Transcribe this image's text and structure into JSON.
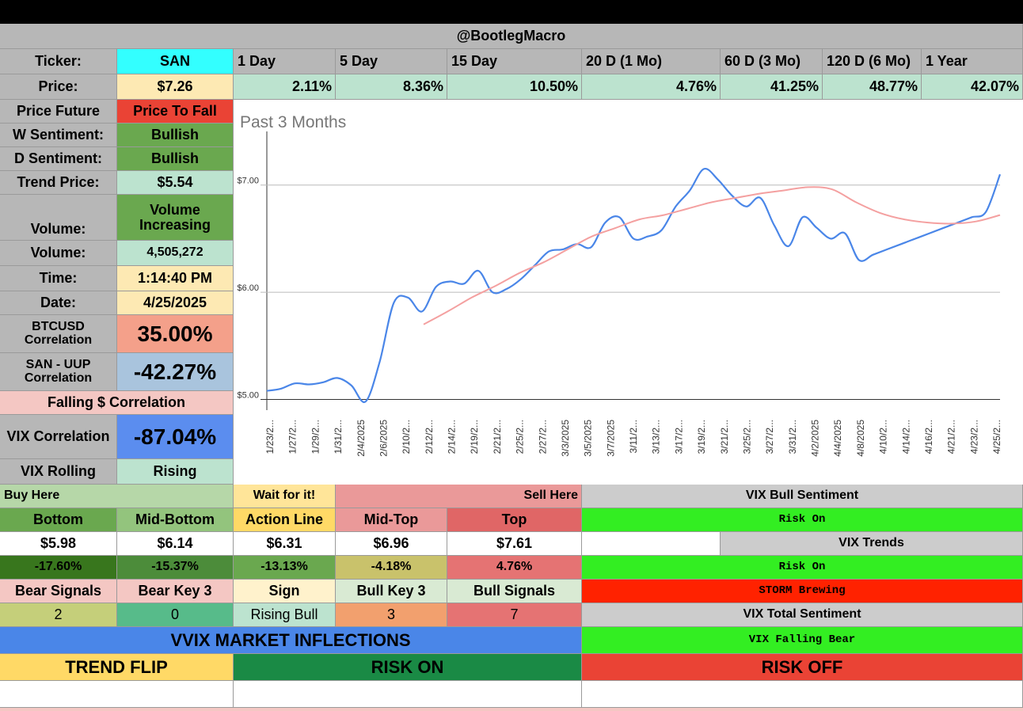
{
  "top_bar": "",
  "handle": "@BootlegMacro",
  "ticker": {
    "label": "Ticker:",
    "value": "SAN"
  },
  "periods": [
    "1 Day",
    "5 Day",
    "15 Day",
    "20 D (1 Mo)",
    "60 D (3 Mo)",
    "120 D (6 Mo)",
    "1 Year"
  ],
  "price": {
    "label": "Price:",
    "value": "$7.26"
  },
  "changes": [
    "2.11%",
    "8.36%",
    "10.50%",
    "4.76%",
    "41.25%",
    "48.77%",
    "42.07%"
  ],
  "left_panel": {
    "price_future": {
      "label": "Price Future",
      "value": "Price To Fall"
    },
    "w_sentiment": {
      "label": "W Sentiment:",
      "value": "Bullish"
    },
    "d_sentiment": {
      "label": "D Sentiment:",
      "value": "Bullish"
    },
    "trend_price": {
      "label": "Trend Price:",
      "value": "$5.54"
    },
    "volume_trend": {
      "label": "Volume:",
      "value": "Volume Increasing"
    },
    "volume": {
      "label": "Volume:",
      "value": "4,505,272"
    },
    "time": {
      "label": "Time:",
      "value": "1:14:40 PM"
    },
    "date": {
      "label": "Date:",
      "value": "4/25/2025"
    },
    "btc_corr": {
      "label": "BTCUSD Correlation",
      "value": "35.00%"
    },
    "uup_corr": {
      "label": "SAN - UUP Correlation",
      "value": "-42.27%"
    },
    "falling_corr": "Falling $ Correlation",
    "vix_corr": {
      "label": "VIX Correlation",
      "value": "-87.04%"
    },
    "vix_rolling": {
      "label": "VIX Rolling",
      "value": "Rising"
    }
  },
  "levels": {
    "buy_here": "Buy Here",
    "wait": "Wait for it!",
    "sell_here": "Sell Here",
    "headers": [
      "Bottom",
      "Mid-Bottom",
      "Action Line",
      "Mid-Top",
      "Top"
    ],
    "prices": [
      "$5.98",
      "$6.14",
      "$6.31",
      "$6.96",
      "$7.61"
    ],
    "pcts": [
      "-17.60%",
      "-15.37%",
      "-13.13%",
      "-4.18%",
      "4.76%"
    ],
    "signal_headers": [
      "Bear Signals",
      "Bear Key 3",
      "Sign",
      "Bull Key 3",
      "Bull Signals"
    ],
    "signal_values": [
      "2",
      "0",
      "Rising Bull",
      "3",
      "7"
    ]
  },
  "vix": {
    "bull_sentiment_label": "VIX Bull Sentiment",
    "bull_sentiment_value": "Risk On",
    "trends_label": "VIX Trends",
    "trend_value_1": "Risk On",
    "trend_value_2": "STORM Brewing",
    "total_label": "VIX Total Sentiment",
    "total_value": "VIX Falling Bear"
  },
  "vvix": {
    "title": "VVIX MARKET INFLECTIONS",
    "trend_flip": "TREND FLIP",
    "risk_on": "RISK ON",
    "risk_off": "RISK OFF"
  },
  "colors": {
    "cyan": "#33ffff",
    "cream": "#fde9b3",
    "mint": "#bce3cf",
    "green": "#6aa84f",
    "red": "#ea4335",
    "salmon": "#f4a08a",
    "lightblue": "#a9c4dd",
    "blue": "#5b8def",
    "pink": "#f4c7c3",
    "lime": "#33ee22",
    "stormred": "#ff2200",
    "price_line": "#4a86e8",
    "trend_line": "#f4a0a0"
  },
  "chart_data": {
    "type": "line",
    "title": "Past 3 Months",
    "ylim": [
      4.9,
      7.5
    ],
    "y_ticks": [
      {
        "value": 5.0,
        "label": "$5.00"
      },
      {
        "value": 6.0,
        "label": "$6.00"
      },
      {
        "value": 7.0,
        "label": "$7.00"
      }
    ],
    "x_labels": [
      "1/23/2...",
      "1/27/2...",
      "1/29/2...",
      "1/31/2...",
      "2/4/2025",
      "2/6/2025",
      "2/10/2...",
      "2/12/2...",
      "2/14/2...",
      "2/19/2...",
      "2/21/2...",
      "2/25/2...",
      "2/27/2...",
      "3/3/2025",
      "3/5/2025",
      "3/7/2025",
      "3/11/2...",
      "3/13/2...",
      "3/17/2...",
      "3/19/2...",
      "3/21/2...",
      "3/25/2...",
      "3/27/2...",
      "3/31/2...",
      "4/2/2025",
      "4/4/2025",
      "4/8/2025",
      "4/10/2...",
      "4/14/2...",
      "4/16/2...",
      "4/21/2...",
      "4/23/2...",
      "4/25/2..."
    ],
    "series": [
      {
        "values": [
          5.08,
          5.1,
          5.15,
          5.14,
          5.16,
          5.2,
          5.13,
          4.98,
          5.35,
          5.9,
          5.95,
          5.82,
          6.05,
          6.1,
          6.08,
          6.2,
          6.0,
          6.03,
          6.12,
          6.25,
          6.38,
          6.4,
          6.45,
          6.42,
          6.65,
          6.7,
          6.5,
          6.52,
          6.58,
          6.8,
          6.95,
          7.15,
          7.05,
          6.9,
          6.8,
          6.88,
          6.62,
          6.43,
          6.7,
          6.6,
          6.5,
          6.55,
          6.3,
          6.35,
          6.4,
          6.45,
          6.5,
          6.55,
          6.6,
          6.65,
          6.7,
          6.75,
          7.1
        ]
      },
      {
        "values": [
          5.7,
          5.82,
          5.95,
          6.06,
          6.18,
          6.28,
          6.4,
          6.52,
          6.6,
          6.68,
          6.72,
          6.78,
          6.84,
          6.88,
          6.92,
          6.95,
          6.98,
          6.96,
          6.84,
          6.74,
          6.68,
          6.65,
          6.64,
          6.66,
          6.72
        ]
      }
    ]
  }
}
